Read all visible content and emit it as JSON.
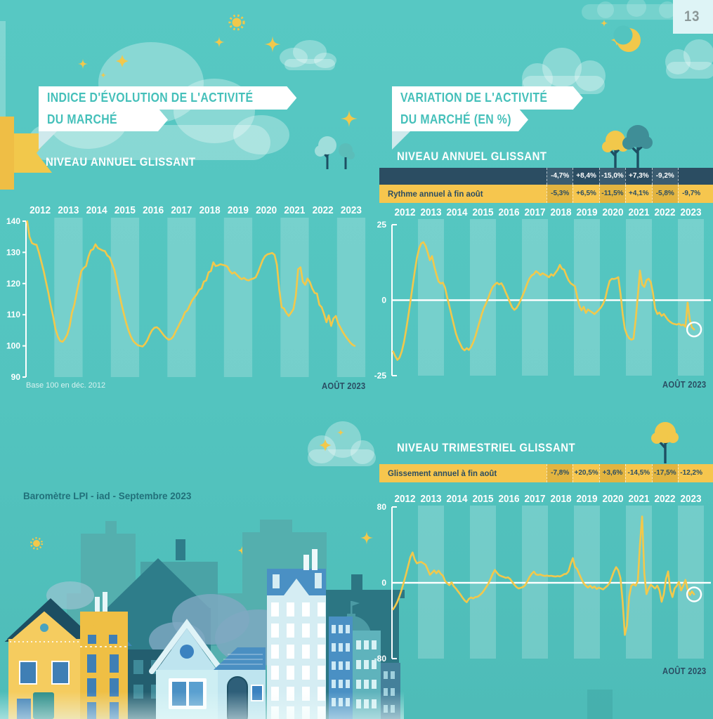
{
  "page": {
    "number": "13",
    "footer": "Baromètre LPI - iad - Septembre 2023"
  },
  "left_panel": {
    "banner": [
      "INDICE D'ÉVOLUTION DE L'ACTIVITÉ",
      "DU MARCHÉ"
    ],
    "subtitle": "NIVEAU ANNUEL GLISSANT",
    "note": "Base 100 en déc. 2012",
    "period": "AOÛT 2023"
  },
  "right_panel": {
    "banner": [
      "VARIATION DE L'ACTIVITÉ",
      "DU MARCHÉ (EN %)"
    ],
    "subtitle_annual": "NIVEAU ANNUEL GLISSANT",
    "subtitle_quarterly": "NIVEAU TRIMESTRIEL GLISSANT",
    "period_annual": "AOÛT 2023",
    "period_quarterly": "AOÛT 2023",
    "annual_table": {
      "rows": [
        {
          "label": "",
          "values": [
            "-4,7%",
            "+8,4%",
            "-15,0%",
            "+7,3%",
            "-9,2%",
            ""
          ]
        },
        {
          "label": "Rythme annuel à fin août",
          "values": [
            "-5,3%",
            "+6,5%",
            "-11,5%",
            "+4,1%",
            "-5,8%",
            "-9,7%"
          ]
        }
      ]
    },
    "quarterly_table": {
      "label": "Glissement annuel à fin août",
      "values": [
        "-7,8%",
        "+20,5%",
        "+3,6%",
        "-14,5%",
        "-17,5%",
        "-12,2%"
      ]
    }
  },
  "colors": {
    "background": "#53C4BF",
    "band": "rgba(255,255,255,0.20)",
    "line": "#F2C84B",
    "navy": "#2B4D62",
    "table_navy": "#2B4D62",
    "table_navy_alt": "#3B5C70",
    "table_yellow": "#F6C64E",
    "table_yellow_alt": "#E2B440",
    "banner_text": "#45C0BA",
    "white": "#FFFFFF"
  },
  "chart_data": [
    {
      "id": "index-annuel",
      "type": "line",
      "title": "NIVEAU ANNUEL GLISSANT",
      "note": "Base 100 en déc. 2012",
      "x_end_label": "AOÛT 2023",
      "x_years": [
        "2012",
        "2013",
        "2014",
        "2015",
        "2016",
        "2017",
        "2018",
        "2019",
        "2020",
        "2021",
        "2022",
        "2023"
      ],
      "freq": "monthly",
      "x_months_total": 144,
      "ylim": [
        90,
        140
      ],
      "yticks": [
        90,
        100,
        110,
        120,
        130,
        140
      ],
      "zero_line": false,
      "end_marker": false,
      "values": [
        140,
        135,
        133,
        132.6,
        132.4,
        130,
        127,
        124,
        120.5,
        117,
        113,
        109.5,
        105.5,
        103,
        101.6,
        101.3,
        102.2,
        103.6,
        106.2,
        110.6,
        113.2,
        117,
        120.6,
        124,
        125,
        125.6,
        128.6,
        130.6,
        131,
        132.6,
        131.4,
        131,
        130.6,
        130.4,
        129,
        128.4,
        126.4,
        124.4,
        121,
        117,
        113.6,
        110.4,
        107.4,
        105,
        103,
        101.6,
        100.8,
        100.2,
        100,
        99.8,
        100.6,
        101.8,
        103.6,
        105,
        105.8,
        106,
        105.4,
        104.4,
        103.4,
        102.6,
        102,
        102.2,
        103,
        104.6,
        106,
        107.6,
        109,
        110.8,
        111.4,
        113,
        114.6,
        115.6,
        116.6,
        118,
        118.4,
        120.6,
        121,
        123.6,
        124,
        126.8,
        125.6,
        125.8,
        126.2,
        126,
        125.8,
        125.4,
        124,
        123.2,
        123.6,
        122.8,
        122,
        121.4,
        121.8,
        121.2,
        121,
        121.4,
        121.6,
        122,
        123.6,
        125.6,
        127.6,
        128.8,
        129.4,
        129.6,
        129.8,
        129.2,
        126,
        118,
        112.4,
        112,
        110.6,
        109.6,
        110.6,
        111.8,
        116,
        124.6,
        125.2,
        120.6,
        119.6,
        121.6,
        120.4,
        118.4,
        117,
        116.8,
        113.2,
        112.4,
        110.2,
        107.6,
        109.8,
        106.4,
        108.8,
        109.6,
        107.2,
        105.8,
        104.4,
        103.2,
        102.2,
        101.2,
        100.4,
        100
      ]
    },
    {
      "id": "variation-annuelle",
      "type": "line",
      "title": "NIVEAU ANNUEL GLISSANT",
      "x_end_label": "AOÛT 2023",
      "x_years": [
        "2012",
        "2013",
        "2014",
        "2015",
        "2016",
        "2017",
        "2018",
        "2019",
        "2020",
        "2021",
        "2022",
        "2023"
      ],
      "freq": "monthly",
      "x_months_total": 144,
      "ylim": [
        -25,
        25
      ],
      "yticks": [
        -25,
        0,
        25
      ],
      "zero_line": true,
      "end_marker": true,
      "values": [
        -17,
        -18.5,
        -19.8,
        -19,
        -17,
        -14,
        -10,
        -5.5,
        -0.5,
        4.5,
        9.5,
        14,
        17,
        18.8,
        19.2,
        18,
        15.8,
        13.2,
        14.6,
        11.3,
        8.6,
        6.2,
        5.5,
        5.8,
        4.2,
        1,
        -2,
        -5,
        -8,
        -11,
        -13,
        -14.5,
        -16,
        -16.6,
        -15.9,
        -16.5,
        -15.5,
        -14,
        -12,
        -9.5,
        -7,
        -4.5,
        -2.5,
        -1,
        0.8,
        2.8,
        4.4,
        5.2,
        5.8,
        5.2,
        5.6,
        4.4,
        2.6,
        1,
        -0.8,
        -2.4,
        -3.2,
        -2.6,
        -1.4,
        0.2,
        1.8,
        3.6,
        5.6,
        7.2,
        8.2,
        8.6,
        9.6,
        9.1,
        8.3,
        8.9,
        8.5,
        8.1,
        7.6,
        8.6,
        8.1,
        9.1,
        10.1,
        11.7,
        10.4,
        10.1,
        8.2,
        6.6,
        5.6,
        5.1,
        4.6,
        1.2,
        -1.8,
        -3.4,
        -2.2,
        -4.2,
        -3.1,
        -3.6,
        -4.1,
        -4.6,
        -3.9,
        -3.2,
        -2.4,
        -1.2,
        0.6,
        3.8,
        6.4,
        7.1,
        7,
        7.2,
        7.6,
        2.2,
        -4.5,
        -9.5,
        -11.5,
        -12.6,
        -13.1,
        -12.8,
        -6.5,
        1.5,
        9.8,
        5.2,
        4.4,
        6.6,
        7.1,
        5.9,
        2.4,
        -2.8,
        -4.6,
        -4.1,
        -5.2,
        -4.6,
        -5.6,
        -6.6,
        -7.2,
        -7.7,
        -7.9,
        -8.1,
        -7.8,
        -8.3,
        -8.1,
        -8.8,
        -0.8,
        -6.5,
        -9,
        -9.7
      ]
    },
    {
      "id": "variation-trimestrielle",
      "type": "line",
      "title": "NIVEAU TRIMESTRIEL GLISSANT",
      "x_end_label": "AOÛT 2023",
      "x_years": [
        "2012",
        "2013",
        "2014",
        "2015",
        "2016",
        "2017",
        "2018",
        "2019",
        "2020",
        "2021",
        "2022",
        "2023"
      ],
      "freq": "monthly",
      "x_months_total": 144,
      "ylim": [
        -80,
        80
      ],
      "yticks": [
        -80,
        0,
        80
      ],
      "zero_line": true,
      "end_marker": true,
      "values": [
        -28,
        -24.5,
        -20,
        -14,
        -7,
        1,
        9,
        18,
        27,
        32,
        24.5,
        20.5,
        21.5,
        22,
        20.5,
        19,
        14,
        8.5,
        10.5,
        13,
        10,
        12.8,
        9.5,
        7.5,
        2,
        -0.5,
        -2.5,
        0.5,
        -3.5,
        -6,
        -9,
        -12,
        -15.5,
        -18.5,
        -20.5,
        -17,
        -15.5,
        -16.5,
        -15,
        -14.8,
        -13,
        -11,
        -8,
        -4.5,
        -1,
        4,
        9.5,
        13.5,
        10.5,
        8,
        7,
        6.2,
        5.2,
        5.8,
        4.2,
        1,
        -2,
        -4.5,
        -6,
        -5.2,
        -4.5,
        -2.5,
        1.5,
        6,
        9.5,
        11.8,
        8.8,
        8.2,
        8.8,
        7.8,
        7.2,
        7.6,
        7.1,
        7.4,
        6.9,
        6.6,
        7.1,
        6.7,
        7.6,
        9.1,
        9.4,
        12,
        20,
        26,
        17,
        14.5,
        9,
        4,
        -0.5,
        -3,
        -5,
        -3,
        -5.5,
        -4,
        -6.5,
        -5,
        -6,
        -7,
        -5,
        -3,
        0,
        6,
        12,
        16.5,
        13,
        5,
        -20,
        -55,
        -45,
        -15,
        -3,
        -1.5,
        -3,
        2,
        40,
        70,
        10,
        -12,
        -6,
        -2,
        -4,
        -6,
        -3,
        -8,
        -20,
        -12,
        4,
        12,
        -8,
        -15,
        -6,
        -3,
        1,
        -8,
        -3,
        3,
        -7,
        -13,
        -9,
        -12.2
      ]
    }
  ]
}
